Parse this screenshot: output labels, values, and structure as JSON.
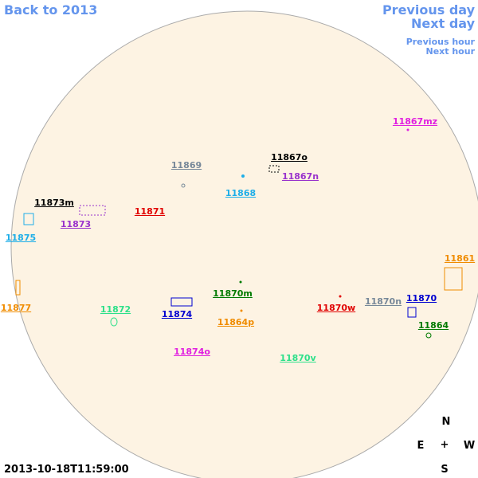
{
  "header": {
    "back": "Back to 2013",
    "previous_day": "Previous day",
    "next_day": "Next day",
    "previous_hour": "Previous hour",
    "next_hour": "Next hour"
  },
  "regions": [
    {
      "label": "11867mz",
      "color": "#e020e0"
    },
    {
      "label": "11867o",
      "color": "#000000"
    },
    {
      "label": "11869",
      "color": "#778899"
    },
    {
      "label": "11867n",
      "color": "#9932cc"
    },
    {
      "label": "11868",
      "color": "#1eaee8"
    },
    {
      "label": "11873m",
      "color": "#000000"
    },
    {
      "label": "11871",
      "color": "#e00000"
    },
    {
      "label": "11873",
      "color": "#9932cc"
    },
    {
      "label": "11875",
      "color": "#1eaee8"
    },
    {
      "label": "11861",
      "color": "#f08c00"
    },
    {
      "label": "11870m",
      "color": "#007a00"
    },
    {
      "label": "11872",
      "color": "#2ee08a"
    },
    {
      "label": "11877",
      "color": "#f08c00"
    },
    {
      "label": "11870",
      "color": "#0000d0"
    },
    {
      "label": "11870w",
      "color": "#e00000"
    },
    {
      "label": "11870n",
      "color": "#778899"
    },
    {
      "label": "11874",
      "color": "#0000d0"
    },
    {
      "label": "11864p",
      "color": "#f08c00"
    },
    {
      "label": "11864",
      "color": "#007a00"
    },
    {
      "label": "11874o",
      "color": "#e020e0"
    },
    {
      "label": "11870v",
      "color": "#2ee08a"
    }
  ],
  "compass": {
    "north": "N",
    "east": "E",
    "center": "+",
    "west": "W",
    "south": "S"
  },
  "timestamp": "2013-10-18T11:59:00"
}
